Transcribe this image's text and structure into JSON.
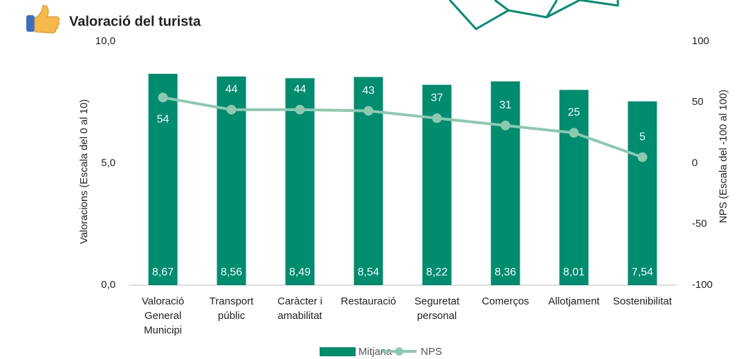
{
  "chart_data": {
    "type": "bar",
    "title": "Valoració del turista",
    "categories": [
      "Valoració\nGeneral\nMunicipi",
      "Transport\npúblic",
      "Caràcter i\namabilitat",
      "Restauració",
      "Seguretat\npersonal",
      "Comerços",
      "Allotjament",
      "Sostenibilitat"
    ],
    "series": [
      {
        "name": "Mitjana",
        "type": "bar",
        "color": "#008c6e",
        "values": [
          8.67,
          8.56,
          8.49,
          8.54,
          8.22,
          8.36,
          8.01,
          7.54
        ],
        "value_labels": [
          "8,67",
          "8,56",
          "8,49",
          "8,54",
          "8,22",
          "8,36",
          "8,01",
          "7,54"
        ]
      },
      {
        "name": "NPS",
        "type": "line",
        "axis": "y2",
        "color": "#8cc9b0",
        "values": [
          54,
          44,
          44,
          43,
          37,
          31,
          25,
          5
        ]
      }
    ],
    "ylabel": "Valoracions (Escala  del 0 al 10)",
    "y2label": "NPS (Escala  del -100 al 100)",
    "ylim": [
      0,
      10
    ],
    "yticks": [
      {
        "value": 0,
        "label": "0,0"
      },
      {
        "value": 5,
        "label": "5,0"
      },
      {
        "value": 10,
        "label": "10,0"
      }
    ],
    "y2lim": [
      -100,
      100
    ],
    "y2ticks": [
      -100,
      -50,
      0,
      50,
      100
    ],
    "legend": "bottom"
  }
}
